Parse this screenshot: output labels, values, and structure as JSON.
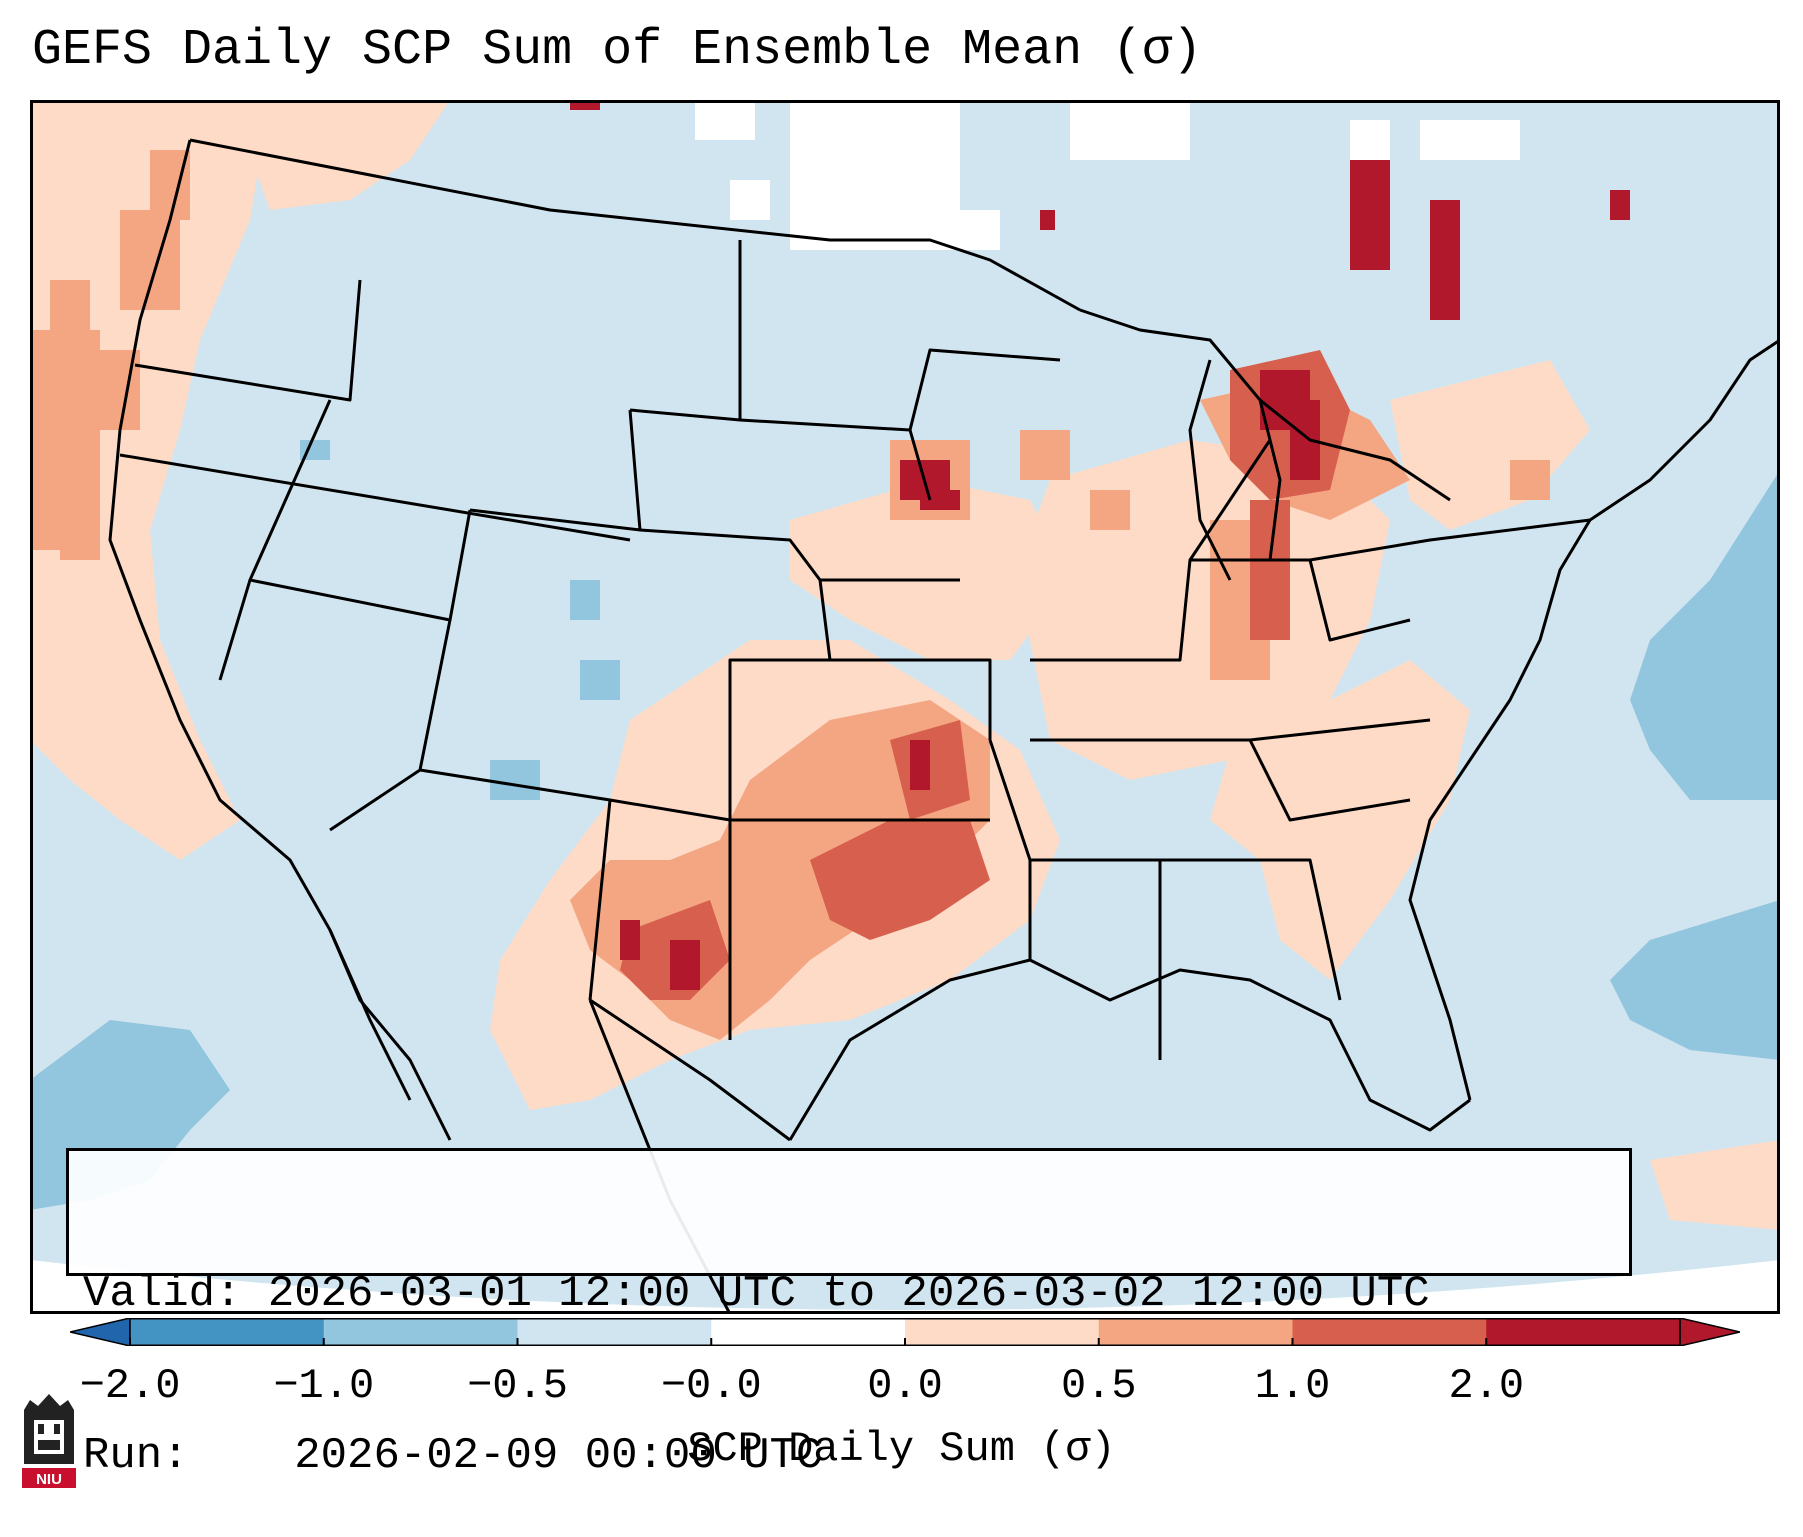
{
  "title": "GEFS Daily SCP Sum of Ensemble Mean (σ)",
  "info": {
    "valid_label": "Valid:",
    "valid_value": "2026-03-01 12:00 UTC to 2026-03-02 12:00 UTC",
    "run_label": "Run:",
    "run_value": "2026-02-09 00:00 UTC"
  },
  "colorbar": {
    "label": "SCP Daily Sum (σ)",
    "ticks": [
      "−2.0",
      "−1.0",
      "−0.5",
      "−0.0",
      "0.0",
      "0.5",
      "1.0",
      "2.0"
    ],
    "colors": [
      "#4393c3",
      "#92c5de",
      "#d1e5f0",
      "#ffffff",
      "#fddbc7",
      "#f4a582",
      "#d6604d",
      "#b2182b"
    ],
    "extend_low_color": "#2166ac",
    "extend_high_color": "#b2182b"
  },
  "map": {
    "background": "#d1e5f0",
    "regions": [
      {
        "name": "pacific-northwest-positive",
        "level": "0.0 to 0.5"
      },
      {
        "name": "southern-plains-positive",
        "level": "1.0 to 2.0"
      },
      {
        "name": "great-lakes-positive",
        "level": "1.0 to 2.0"
      },
      {
        "name": "western-atlantic-negative",
        "level": "-1.0 to -0.5"
      }
    ]
  },
  "logo_text": "NIU"
}
